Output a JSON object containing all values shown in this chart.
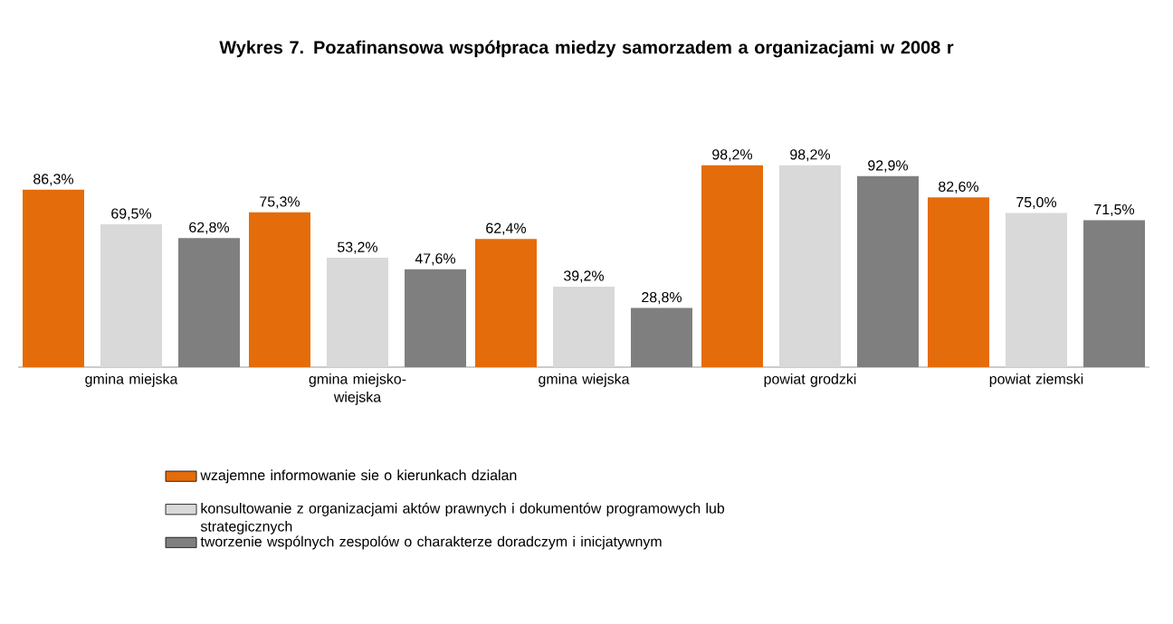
{
  "chart_data": {
    "type": "bar",
    "title": "Wykres 7. Pozafinansowa współpraca miedzy samorzadem a organizacjami w 2008 r",
    "categories": [
      "gmina miejska",
      "gmina miejsko-wiejska",
      "gmina wiejska",
      "powiat grodzki",
      "powiat ziemski"
    ],
    "series": [
      {
        "name": "wzajemne informowanie sie o kierunkach dzialan",
        "color": "#e46c0a",
        "values": [
          86.3,
          75.3,
          62.4,
          98.2,
          82.6
        ],
        "value_labels": [
          "86,3%",
          "75,3%",
          "62,4%",
          "98,2%",
          "82,6%"
        ]
      },
      {
        "name": "konsultowanie z organizacjami aktów prawnych i dokumentów programowych lub strategicznych",
        "color": "#d9d9d9",
        "values": [
          69.5,
          53.2,
          39.2,
          98.2,
          75.0
        ],
        "value_labels": [
          "69,5%",
          "53,2%",
          "39,2%",
          "98,2%",
          "75,0%"
        ]
      },
      {
        "name": "tworzenie wspólnych zespolów o charakterze doradczym i inicjatywnym",
        "color": "#7f7f7f",
        "values": [
          62.8,
          47.6,
          28.8,
          92.9,
          71.5
        ],
        "value_labels": [
          "62,8%",
          "47,6%",
          "28,8%",
          "92,9%",
          "71,5%"
        ]
      }
    ],
    "legend": "bottom"
  }
}
